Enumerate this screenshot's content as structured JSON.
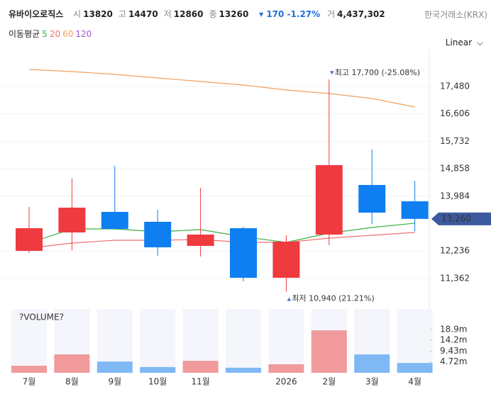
{
  "chart_data": {
    "type": "candlestick",
    "header": {
      "name": "유바이오로직스",
      "items": [
        {
          "label": "시",
          "value": 13820
        },
        {
          "label": "고",
          "value": 14470
        },
        {
          "label": "저",
          "value": 12860
        },
        {
          "label": "종",
          "value": 13260
        }
      ],
      "change": "170 -1.27%",
      "volume_label": "거",
      "volume_value": "4,437,302",
      "exchange": "한국거래소(KRX)",
      "scale": "Linear"
    },
    "ma_label": "이동평균",
    "categories": [
      "7월",
      "8월",
      "9월",
      "10월",
      "11월",
      null,
      "2026",
      "2월",
      "3월",
      "4월"
    ],
    "open": [
      12241,
      12828,
      13483,
      13167,
      12399,
      12963,
      11383,
      12760,
      14341,
      13820
    ],
    "high": [
      13641,
      14544,
      14951,
      13550,
      14250,
      13008,
      12737,
      17700,
      15470,
      14470
    ],
    "low": [
      12173,
      12263,
      12941,
      12083,
      12060,
      11270,
      10940,
      12421,
      13099,
      12860
    ],
    "close": [
      12963,
      13618,
      12941,
      12354,
      12760,
      11383,
      12534,
      14973,
      13460,
      13260
    ],
    "up_color": "#ef3a3f",
    "down_color": "#0f7ef0",
    "ylim": [
      10637,
      18428
    ],
    "yticks": [
      {
        "value": 11362,
        "label": "11,362"
      },
      {
        "value": 12236,
        "label": "12,236"
      },
      {
        "value": 13984,
        "label": "13,984"
      },
      {
        "value": 14858,
        "label": "14,858"
      },
      {
        "value": 15732,
        "label": "15,732"
      },
      {
        "value": 16606,
        "label": "16,606"
      },
      {
        "value": 17480,
        "label": "17,480"
      }
    ],
    "grid": true,
    "series": [
      {
        "name": "5",
        "color": "#3cb043",
        "values": [
          12489,
          12941,
          12941,
          12850,
          12918,
          12692,
          12511,
          12805,
          12986,
          13122
        ]
      },
      {
        "name": "20",
        "color": "#f07070",
        "values": [
          12331,
          12489,
          12579,
          12579,
          12602,
          12511,
          12511,
          12647,
          12737,
          12828
        ]
      },
      {
        "name": "60",
        "color": "#f0a060",
        "values": [
          18022,
          17954,
          17864,
          17751,
          17638,
          17525,
          17367,
          17254,
          17096,
          16825
        ]
      },
      {
        "name": "120",
        "color": "#9b59d0",
        "values": [
          null,
          null,
          null,
          null,
          null,
          null,
          null,
          null,
          null,
          null
        ]
      }
    ],
    "annotations": [
      {
        "text": "최고 17,700 (-25.08%)",
        "index": 7,
        "value": 17700
      },
      {
        "text": "최저 10,940 (21.21%)",
        "index": 6,
        "value": 10940
      }
    ],
    "current_label": "13,260",
    "volume": {
      "title": "?VOLUME?",
      "values": [
        3080000,
        8000000,
        4900000,
        2500000,
        5200000,
        2200000,
        3700000,
        18500000,
        8000000,
        4300000
      ],
      "up_color": "#f09a9c",
      "down_color": "#7fb8f5",
      "ylim": [
        0,
        27800000
      ],
      "yticks": [
        {
          "value": 4720000,
          "label": "4.72m"
        },
        {
          "value": 9430000,
          "label": "9.43m"
        },
        {
          "value": 14200000,
          "label": "14.2m"
        },
        {
          "value": 18900000,
          "label": "18.9m"
        }
      ]
    }
  }
}
